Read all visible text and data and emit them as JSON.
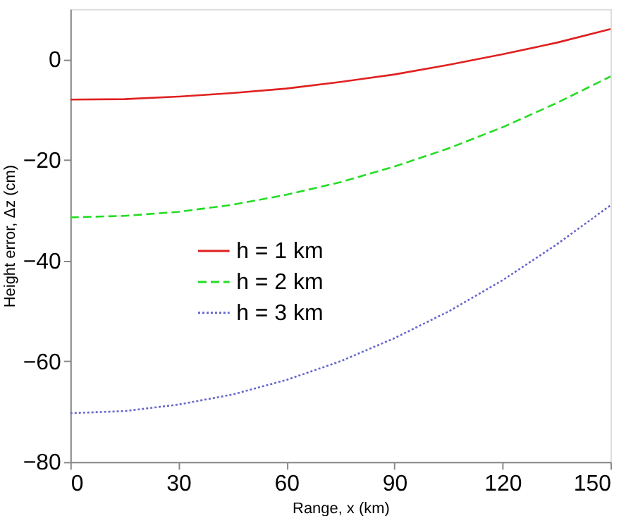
{
  "chart_data": {
    "type": "line",
    "xlabel": "Range, x (km)",
    "ylabel": "Height error, Δz (cm)",
    "x": [
      0,
      15,
      30,
      45,
      60,
      75,
      90,
      105,
      120,
      135,
      150
    ],
    "series": [
      {
        "name": "h = 1 km",
        "color": "#e02020",
        "line_style": "solid",
        "values": [
          -8.0,
          -7.9,
          -7.4,
          -6.7,
          -5.8,
          -4.5,
          -3.0,
          -1.1,
          1.0,
          3.3,
          6.0
        ]
      },
      {
        "name": "h = 2 km",
        "color": "#22dd22",
        "line_style": "dashed",
        "values": [
          -31.4,
          -31.1,
          -30.3,
          -28.9,
          -26.9,
          -24.4,
          -21.3,
          -17.7,
          -13.5,
          -8.7,
          -3.4
        ]
      },
      {
        "name": "h = 3 km",
        "color": "#6666cc",
        "line_style": "dotted",
        "values": [
          -70.3,
          -69.9,
          -68.6,
          -66.6,
          -63.7,
          -60.0,
          -55.4,
          -50.1,
          -43.9,
          -36.8,
          -29.0
        ]
      }
    ],
    "xlim": [
      0,
      150
    ],
    "xticks": [
      0,
      30,
      60,
      90,
      120,
      150
    ],
    "ylim": [
      -80,
      10
    ],
    "yticks": [
      -80,
      -60,
      -40,
      -20,
      0
    ],
    "grid": false,
    "legend": "left",
    "marker": "none"
  }
}
